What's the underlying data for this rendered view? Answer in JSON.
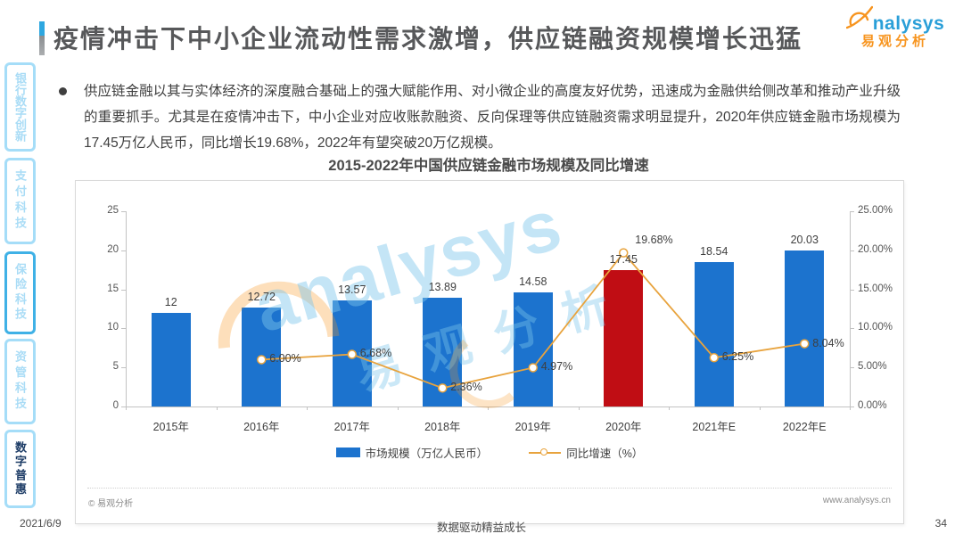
{
  "header": {
    "title": "疫情冲击下中小企业流动性需求激增，供应链融资规模增长迅猛",
    "logo_en": "nalysys",
    "logo_cn": "易观分析"
  },
  "sidebar": {
    "tabs": [
      {
        "label": "银行数字创新",
        "style": "normal"
      },
      {
        "label": "支付科技",
        "style": "normal"
      },
      {
        "label": "保险科技",
        "style": "strong-border"
      },
      {
        "label": "资管科技",
        "style": "normal"
      },
      {
        "label": "数字普惠",
        "style": "active"
      }
    ]
  },
  "bullet": {
    "text": "供应链金融以其与实体经济的深度融合基础上的强大赋能作用、对小微企业的高度友好优势，迅速成为金融供给侧改革和推动产业升级的重要抓手。尤其是在疫情冲击下，中小企业对应收账款融资、反向保理等供应链融资需求明显提升，2020年供应链金融市场规模为17.45万亿人民币，同比增长19.68%，2022年有望突破20万亿规模。"
  },
  "chart_data": {
    "type": "bar+line",
    "title": "2015-2022年中国供应链金融市场规模及同比增速",
    "categories": [
      "2015年",
      "2016年",
      "2017年",
      "2018年",
      "2019年",
      "2020年",
      "2021年E",
      "2022年E"
    ],
    "series": [
      {
        "name": "市场规模（万亿人民币）",
        "type": "bar",
        "values": [
          12,
          12.72,
          13.57,
          13.89,
          14.58,
          17.45,
          18.54,
          20.03
        ],
        "labels": [
          "12",
          "12.72",
          "13.57",
          "13.89",
          "14.58",
          "17.45",
          "18.54",
          "20.03"
        ]
      },
      {
        "name": "同比增速（%）",
        "type": "line",
        "values": [
          null,
          6.0,
          6.68,
          2.36,
          4.97,
          19.68,
          6.25,
          8.04
        ],
        "labels": [
          "",
          "6.00%",
          "6.68%",
          "2.36%",
          "4.97%",
          "19.68%",
          "6.25%",
          "8.04%"
        ]
      }
    ],
    "left_axis": {
      "ticks": [
        "0",
        "5",
        "10",
        "15",
        "20",
        "25"
      ],
      "max": 25
    },
    "right_axis": {
      "ticks": [
        "0.00%",
        "5.00%",
        "10.00%",
        "15.00%",
        "20.00%",
        "25.00%"
      ],
      "max": 25
    },
    "highlight_index": 5,
    "bar_color": "#1C73CE",
    "highlight_color": "#C00D14",
    "line_color": "#E8A33D",
    "legend_position": "bottom",
    "grid": false
  },
  "watermark": {
    "text_en": "analysys",
    "text_cn": "易观分析"
  },
  "card_footer": {
    "copyright": "© 易观分析",
    "site": "www.analysys.cn"
  },
  "page_footer": {
    "date": "2021/6/9",
    "slogan": "数据驱动精益成长",
    "page": "34"
  }
}
